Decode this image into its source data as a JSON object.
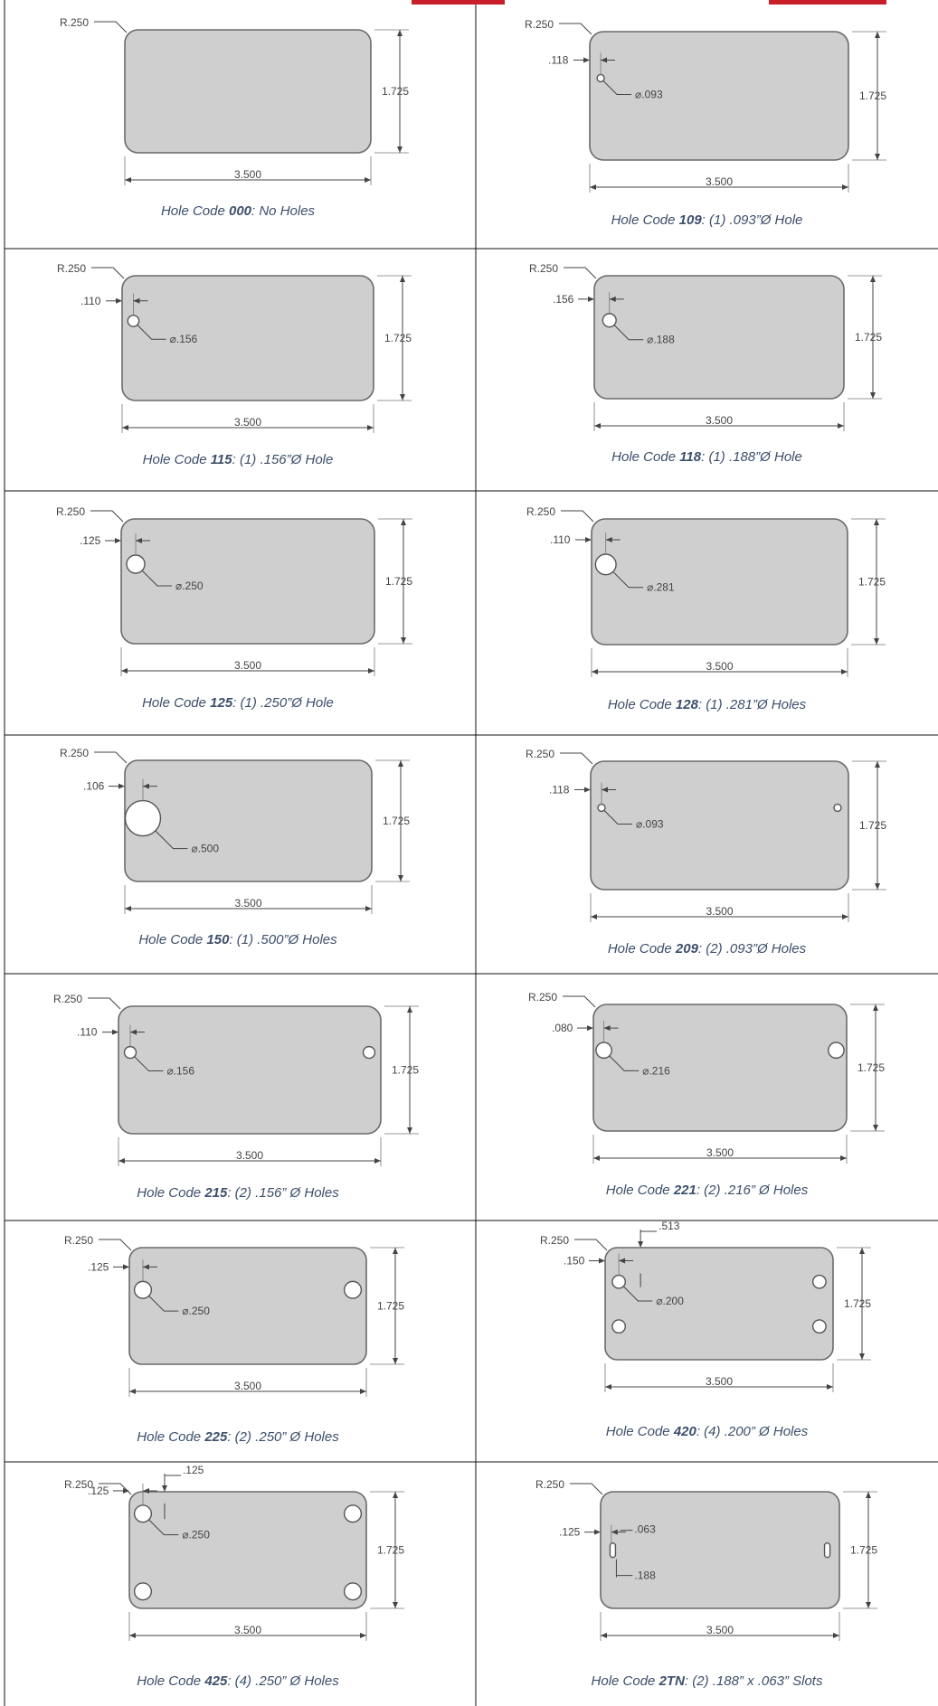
{
  "common": {
    "radius": "R.250",
    "height": "1.725",
    "width": "3.500"
  },
  "cells": [
    {
      "id": "000",
      "caption_prefix": "Hole Code ",
      "code": "000",
      "caption_suffix": ":  No Holes",
      "offset_label": "",
      "diameter_label": "",
      "hole_d": 0,
      "holes": []
    },
    {
      "id": "109",
      "caption_prefix": "Hole Code ",
      "code": "109",
      "caption_suffix": ": (1) .093”Ø Hole",
      "offset_label": ".118",
      "diameter_label": "⌀.093",
      "hole_d": 0.093,
      "holes": [
        [
          0.118,
          1.1
        ]
      ]
    },
    {
      "id": "115",
      "caption_prefix": "Hole Code ",
      "code": "115",
      "caption_suffix": ": (1) .156”Ø Hole",
      "offset_label": ".110",
      "diameter_label": "⌀.156",
      "hole_d": 0.156,
      "holes": [
        [
          0.11,
          1.1
        ]
      ]
    },
    {
      "id": "118",
      "caption_prefix": "Hole Code ",
      "code": "118",
      "caption_suffix": ": (1) .188”Ø Hole",
      "offset_label": ".156",
      "diameter_label": "⌀.188",
      "hole_d": 0.188,
      "holes": [
        [
          0.156,
          1.1
        ]
      ]
    },
    {
      "id": "125",
      "caption_prefix": "Hole Code ",
      "code": "125",
      "caption_suffix": ": (1) .250”Ø Hole",
      "offset_label": ".125",
      "diameter_label": "⌀.250",
      "hole_d": 0.25,
      "holes": [
        [
          0.125,
          1.1
        ]
      ]
    },
    {
      "id": "128",
      "caption_prefix": "Hole Code ",
      "code": "128",
      "caption_suffix": ": (1) .281”Ø Holes",
      "offset_label": ".110",
      "diameter_label": "⌀.281",
      "hole_d": 0.281,
      "holes": [
        [
          0.11,
          1.1
        ]
      ]
    },
    {
      "id": "150",
      "caption_prefix": "Hole Code ",
      "code": "150",
      "caption_suffix": ": (1) .500”Ø Holes",
      "offset_label": ".106",
      "diameter_label": "⌀.500",
      "hole_d": 0.5,
      "holes": [
        [
          0.106,
          0.9
        ]
      ]
    },
    {
      "id": "209",
      "caption_prefix": "Hole Code ",
      "code": "209",
      "caption_suffix": ": (2) .093”Ø Holes",
      "offset_label": ".118",
      "diameter_label": "⌀.093",
      "hole_d": 0.093,
      "holes": [
        [
          0.118,
          1.1
        ],
        [
          3.382,
          1.1
        ]
      ]
    },
    {
      "id": "215",
      "caption_prefix": "Hole Code ",
      "code": "215",
      "caption_suffix": ": (2) .156” Ø Holes",
      "offset_label": ".110",
      "diameter_label": "⌀.156",
      "hole_d": 0.156,
      "holes": [
        [
          0.11,
          1.1
        ],
        [
          3.39,
          1.1
        ]
      ]
    },
    {
      "id": "221",
      "caption_prefix": "Hole Code ",
      "code": "221",
      "caption_suffix": ": (2) .216” Ø Holes",
      "offset_label": ".080",
      "diameter_label": "⌀.216",
      "hole_d": 0.216,
      "holes": [
        [
          0.08,
          1.1
        ],
        [
          3.42,
          1.1
        ]
      ]
    },
    {
      "id": "225",
      "caption_prefix": "Hole Code ",
      "code": "225",
      "caption_suffix": ": (2) .250” Ø Holes",
      "offset_label": ".125",
      "diameter_label": "⌀.250",
      "hole_d": 0.25,
      "holes": [
        [
          0.125,
          1.1
        ],
        [
          3.375,
          1.1
        ]
      ]
    },
    {
      "id": "420",
      "caption_prefix": "Hole Code ",
      "code": "420",
      "caption_suffix": ": (4) .200” Ø Holes",
      "offset_label": ".150",
      "top_label": ".513",
      "diameter_label": "⌀.200",
      "hole_d": 0.2,
      "holes": [
        [
          0.15,
          1.2
        ],
        [
          3.35,
          1.2
        ],
        [
          0.15,
          0.513
        ],
        [
          3.35,
          0.513
        ]
      ]
    },
    {
      "id": "425",
      "caption_prefix": "Hole Code ",
      "code": "425",
      "caption_suffix": ": (4) .250” Ø Holes",
      "offset_label": ".125",
      "top_label": ".125",
      "diameter_label": "⌀.250",
      "hole_d": 0.25,
      "holes": [
        [
          0.125,
          1.4
        ],
        [
          3.375,
          1.4
        ],
        [
          0.125,
          0.25
        ],
        [
          3.375,
          0.25
        ]
      ]
    },
    {
      "id": "2TN",
      "caption_prefix": "Hole Code ",
      "code": "2TN",
      "caption_suffix": ": (2) .188” x .063” Slots",
      "offset_label": ".125",
      "slot_w_label": ".063",
      "slot_h_label": ".188",
      "diameter_label": "",
      "hole_d": 0,
      "holes": [],
      "slots": [
        [
          0.125,
          0.86
        ],
        [
          3.375,
          0.86
        ]
      ]
    }
  ]
}
